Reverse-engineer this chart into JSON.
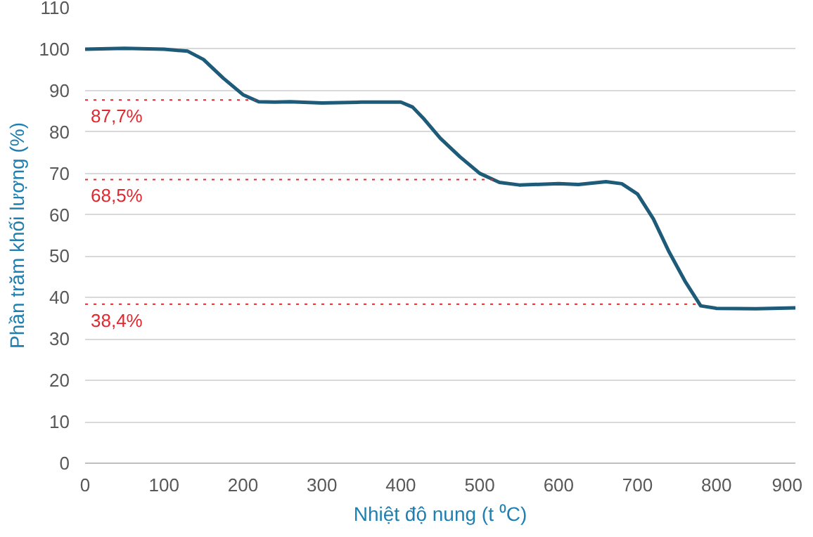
{
  "chart_data": {
    "type": "line",
    "xlabel": "Nhiệt độ nung (t ⁰C)",
    "ylabel": "Phần trăm khối lượng (%)",
    "x": [
      0,
      50,
      100,
      130,
      150,
      175,
      200,
      220,
      240,
      260,
      300,
      350,
      400,
      415,
      430,
      450,
      475,
      500,
      525,
      550,
      600,
      625,
      660,
      680,
      700,
      720,
      740,
      760,
      780,
      800,
      850,
      900
    ],
    "series": [
      {
        "color": "#1d5b79",
        "values": [
          100,
          100.2,
          100,
          99.5,
          97.5,
          93,
          89,
          87.3,
          87.2,
          87.3,
          87,
          87.2,
          87.2,
          86,
          83,
          78.5,
          74,
          70,
          67.8,
          67.2,
          67.5,
          67.3,
          68,
          67.5,
          65,
          59,
          51,
          44,
          38,
          37.4,
          37.3,
          37.5
        ]
      }
    ],
    "xlim": [
      0,
      900
    ],
    "xticks": [
      0,
      100,
      200,
      300,
      400,
      500,
      600,
      700,
      800,
      900
    ],
    "ylim": [
      0,
      110
    ],
    "yticks": [
      0,
      10,
      20,
      30,
      40,
      50,
      60,
      70,
      80,
      90,
      100,
      110
    ],
    "grid": "y",
    "marker": "none",
    "line_style": "solid",
    "ref_lines": [
      {
        "axis": "y",
        "value": 87.7,
        "label": "87,7%",
        "color": "#e0282e",
        "line_style": "dotted"
      },
      {
        "axis": "y",
        "value": 68.5,
        "label": "68,5%",
        "color": "#e0282e",
        "line_style": "dotted"
      },
      {
        "axis": "y",
        "value": 38.4,
        "label": "38,4%",
        "color": "#e0282e",
        "line_style": "dotted"
      }
    ]
  }
}
